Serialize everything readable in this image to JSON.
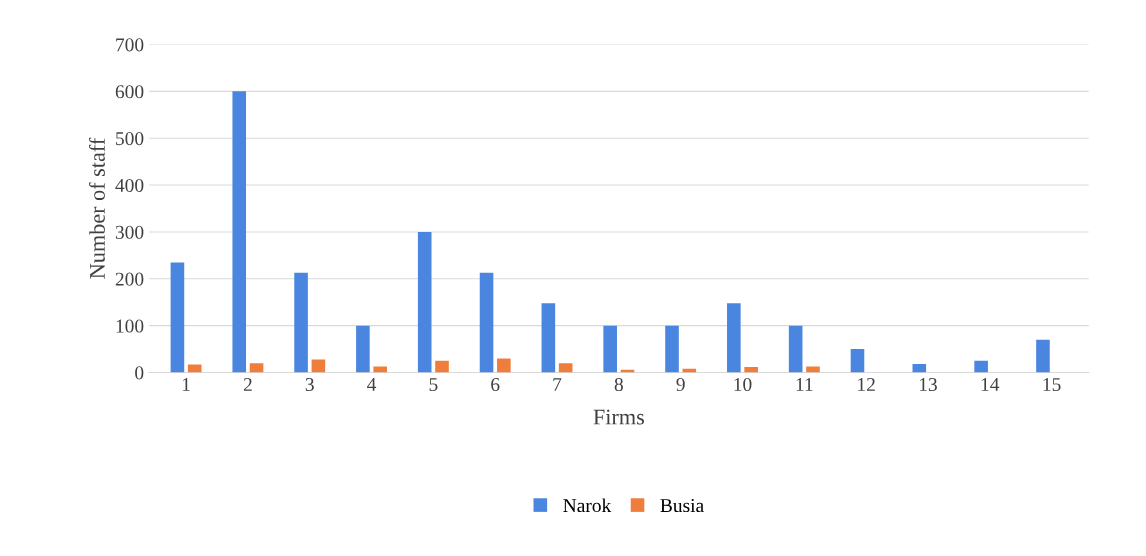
{
  "chart_data": {
    "type": "bar",
    "xlabel": "Firms",
    "ylabel": "Number of staff",
    "categories": [
      "1",
      "2",
      "3",
      "4",
      "5",
      "6",
      "7",
      "8",
      "9",
      "10",
      "11",
      "12",
      "13",
      "14",
      "15"
    ],
    "series": [
      {
        "name": "Narok",
        "color": "#4a86e0",
        "values": [
          235,
          600,
          213,
          100,
          300,
          213,
          148,
          100,
          100,
          148,
          100,
          50,
          18,
          25,
          70
        ]
      },
      {
        "name": "Busia",
        "color": "#ef7d3c",
        "values": [
          17,
          20,
          28,
          13,
          25,
          30,
          20,
          6,
          8,
          12,
          13,
          null,
          null,
          null,
          null
        ]
      }
    ],
    "ylim": [
      0,
      700
    ],
    "yticks": [
      0,
      100,
      200,
      300,
      400,
      500,
      600,
      700
    ],
    "grid": "y",
    "legend": "bottom"
  }
}
